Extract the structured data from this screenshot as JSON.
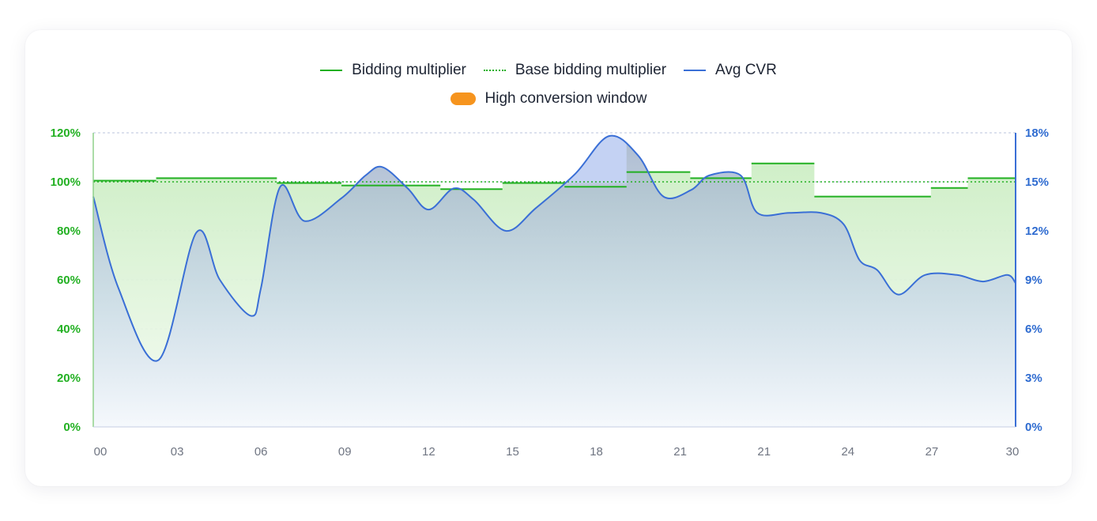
{
  "legend": {
    "bidding": "Bidding multiplier",
    "base": "Base bidding multiplier",
    "cvr": "Avg CVR",
    "window": "High conversion window"
  },
  "colors": {
    "bidding": "#22b022",
    "cvr": "#3a6fd6",
    "window": "#f6941e",
    "grid": "#b9c3de"
  },
  "chart_data": {
    "type": "line",
    "x_ticks": [
      "00",
      "03",
      "06",
      "09",
      "12",
      "15",
      "18",
      "21",
      "21",
      "24",
      "27",
      "30"
    ],
    "y_left_ticks": [
      "0%",
      "20%",
      "40%",
      "60%",
      "80%",
      "100%",
      "120%"
    ],
    "y_right_ticks": [
      "0%",
      "3%",
      "6%",
      "9%",
      "12%",
      "15%",
      "18%"
    ],
    "ylim_left": [
      0,
      120
    ],
    "ylim_right": [
      0,
      18
    ],
    "xlim": [
      0,
      11
    ],
    "base_bidding_multiplier": 100,
    "bidding_multiplier_steps": [
      {
        "from": 0.0,
        "to": 0.75,
        "value": 100.5
      },
      {
        "from": 0.75,
        "to": 2.19,
        "value": 101.5
      },
      {
        "from": 2.19,
        "to": 2.96,
        "value": 99.5
      },
      {
        "from": 2.96,
        "to": 4.14,
        "value": 98.5
      },
      {
        "from": 4.14,
        "to": 4.88,
        "value": 97
      },
      {
        "from": 4.88,
        "to": 5.62,
        "value": 99.5
      },
      {
        "from": 5.62,
        "to": 6.36,
        "value": 98
      },
      {
        "from": 6.36,
        "to": 7.12,
        "value": 104
      },
      {
        "from": 7.12,
        "to": 7.85,
        "value": 101.5
      },
      {
        "from": 7.85,
        "to": 8.6,
        "value": 107.5
      },
      {
        "from": 8.6,
        "to": 9.99,
        "value": 94
      },
      {
        "from": 9.99,
        "to": 10.43,
        "value": 97.5
      },
      {
        "from": 10.43,
        "to": 11.0,
        "value": 101.5
      }
    ],
    "avg_cvr": {
      "x": [
        0.0,
        0.3,
        0.78,
        1.23,
        1.51,
        1.88,
        2.0,
        2.23,
        2.52,
        2.96,
        3.25,
        3.45,
        3.75,
        4.0,
        4.3,
        4.54,
        4.92,
        5.28,
        5.75,
        6.15,
        6.5,
        6.8,
        7.13,
        7.35,
        7.72,
        7.92,
        8.3,
        8.68,
        8.95,
        9.14,
        9.35,
        9.6,
        9.92,
        10.3,
        10.61,
        10.9,
        11.0
      ],
      "y": [
        14.1,
        8.5,
        4.1,
        11.9,
        9.0,
        6.8,
        8.5,
        14.7,
        12.6,
        14.0,
        15.4,
        15.9,
        14.6,
        13.3,
        14.6,
        13.9,
        12.0,
        13.4,
        15.5,
        17.8,
        16.6,
        14.1,
        14.5,
        15.4,
        15.4,
        13.1,
        13.1,
        13.1,
        12.4,
        10.2,
        9.6,
        8.1,
        9.3,
        9.3,
        8.9,
        9.3,
        8.8
      ]
    }
  }
}
